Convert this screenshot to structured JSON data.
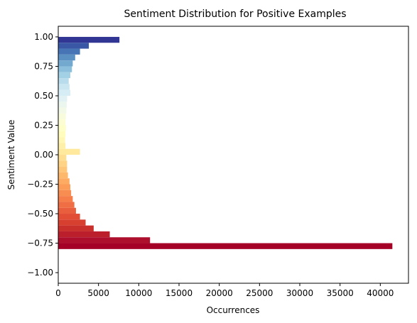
{
  "chart_data": {
    "type": "bar",
    "orientation": "horizontal",
    "title": "Sentiment Distribution for Positive Examples",
    "xlabel": "Occurrences",
    "ylabel": "Sentiment Value",
    "xlim": [
      0,
      43500
    ],
    "ylim": [
      -1.09,
      1.09
    ],
    "xticks": [
      0,
      5000,
      10000,
      15000,
      20000,
      25000,
      30000,
      35000,
      40000
    ],
    "yticks": [
      1.0,
      0.75,
      0.5,
      0.25,
      0.0,
      -0.25,
      -0.5,
      -0.75,
      -1.0
    ],
    "ytick_labels": [
      "1.00",
      "0.75",
      "0.50",
      "0.25",
      "0.00",
      "−0.25",
      "−0.50",
      "−0.75",
      "−1.00"
    ],
    "bin_width": 0.05,
    "grid": false,
    "colormap": "RdYlBu",
    "bins": [
      {
        "y": 1.0,
        "value": 7600,
        "color": "#313695"
      },
      {
        "y": 0.95,
        "value": 3800,
        "color": "#3a57a6"
      },
      {
        "y": 0.9,
        "value": 2700,
        "color": "#4674b4"
      },
      {
        "y": 0.85,
        "value": 2100,
        "color": "#5b90c2"
      },
      {
        "y": 0.8,
        "value": 1800,
        "color": "#74a9cf"
      },
      {
        "y": 0.75,
        "value": 1700,
        "color": "#8bbfdb"
      },
      {
        "y": 0.7,
        "value": 1500,
        "color": "#a2d0e4"
      },
      {
        "y": 0.65,
        "value": 1300,
        "color": "#b8dcec"
      },
      {
        "y": 0.6,
        "value": 1400,
        "color": "#c9e6f1"
      },
      {
        "y": 0.55,
        "value": 1500,
        "color": "#d7edf5"
      },
      {
        "y": 0.5,
        "value": 1100,
        "color": "#e2f2f4"
      },
      {
        "y": 0.45,
        "value": 1050,
        "color": "#ebf6ee"
      },
      {
        "y": 0.4,
        "value": 1000,
        "color": "#f2f9e6"
      },
      {
        "y": 0.35,
        "value": 950,
        "color": "#f8fbdc"
      },
      {
        "y": 0.3,
        "value": 900,
        "color": "#fcfdd3"
      },
      {
        "y": 0.25,
        "value": 950,
        "color": "#fefec8"
      },
      {
        "y": 0.2,
        "value": 900,
        "color": "#fffcbd"
      },
      {
        "y": 0.15,
        "value": 850,
        "color": "#fff7b3"
      },
      {
        "y": 0.1,
        "value": 900,
        "color": "#fff0a9"
      },
      {
        "y": 0.05,
        "value": 2700,
        "color": "#ffe99d"
      },
      {
        "y": 0.0,
        "value": 1000,
        "color": "#fedf91"
      },
      {
        "y": -0.05,
        "value": 1100,
        "color": "#fed385"
      },
      {
        "y": -0.1,
        "value": 1100,
        "color": "#fec679"
      },
      {
        "y": -0.15,
        "value": 1200,
        "color": "#fdb86c"
      },
      {
        "y": -0.2,
        "value": 1400,
        "color": "#fdab62"
      },
      {
        "y": -0.25,
        "value": 1500,
        "color": "#fb9c58"
      },
      {
        "y": -0.3,
        "value": 1600,
        "color": "#f88d51"
      },
      {
        "y": -0.35,
        "value": 1800,
        "color": "#f57e4a"
      },
      {
        "y": -0.4,
        "value": 2000,
        "color": "#f06e43"
      },
      {
        "y": -0.45,
        "value": 2200,
        "color": "#e95e3c"
      },
      {
        "y": -0.5,
        "value": 2700,
        "color": "#e14e35"
      },
      {
        "y": -0.55,
        "value": 3400,
        "color": "#d73f2f"
      },
      {
        "y": -0.6,
        "value": 4400,
        "color": "#c92f2b"
      },
      {
        "y": -0.65,
        "value": 6400,
        "color": "#bb1f2b"
      },
      {
        "y": -0.7,
        "value": 11400,
        "color": "#ad0f2c"
      },
      {
        "y": -0.75,
        "value": 41500,
        "color": "#a50026"
      }
    ]
  }
}
